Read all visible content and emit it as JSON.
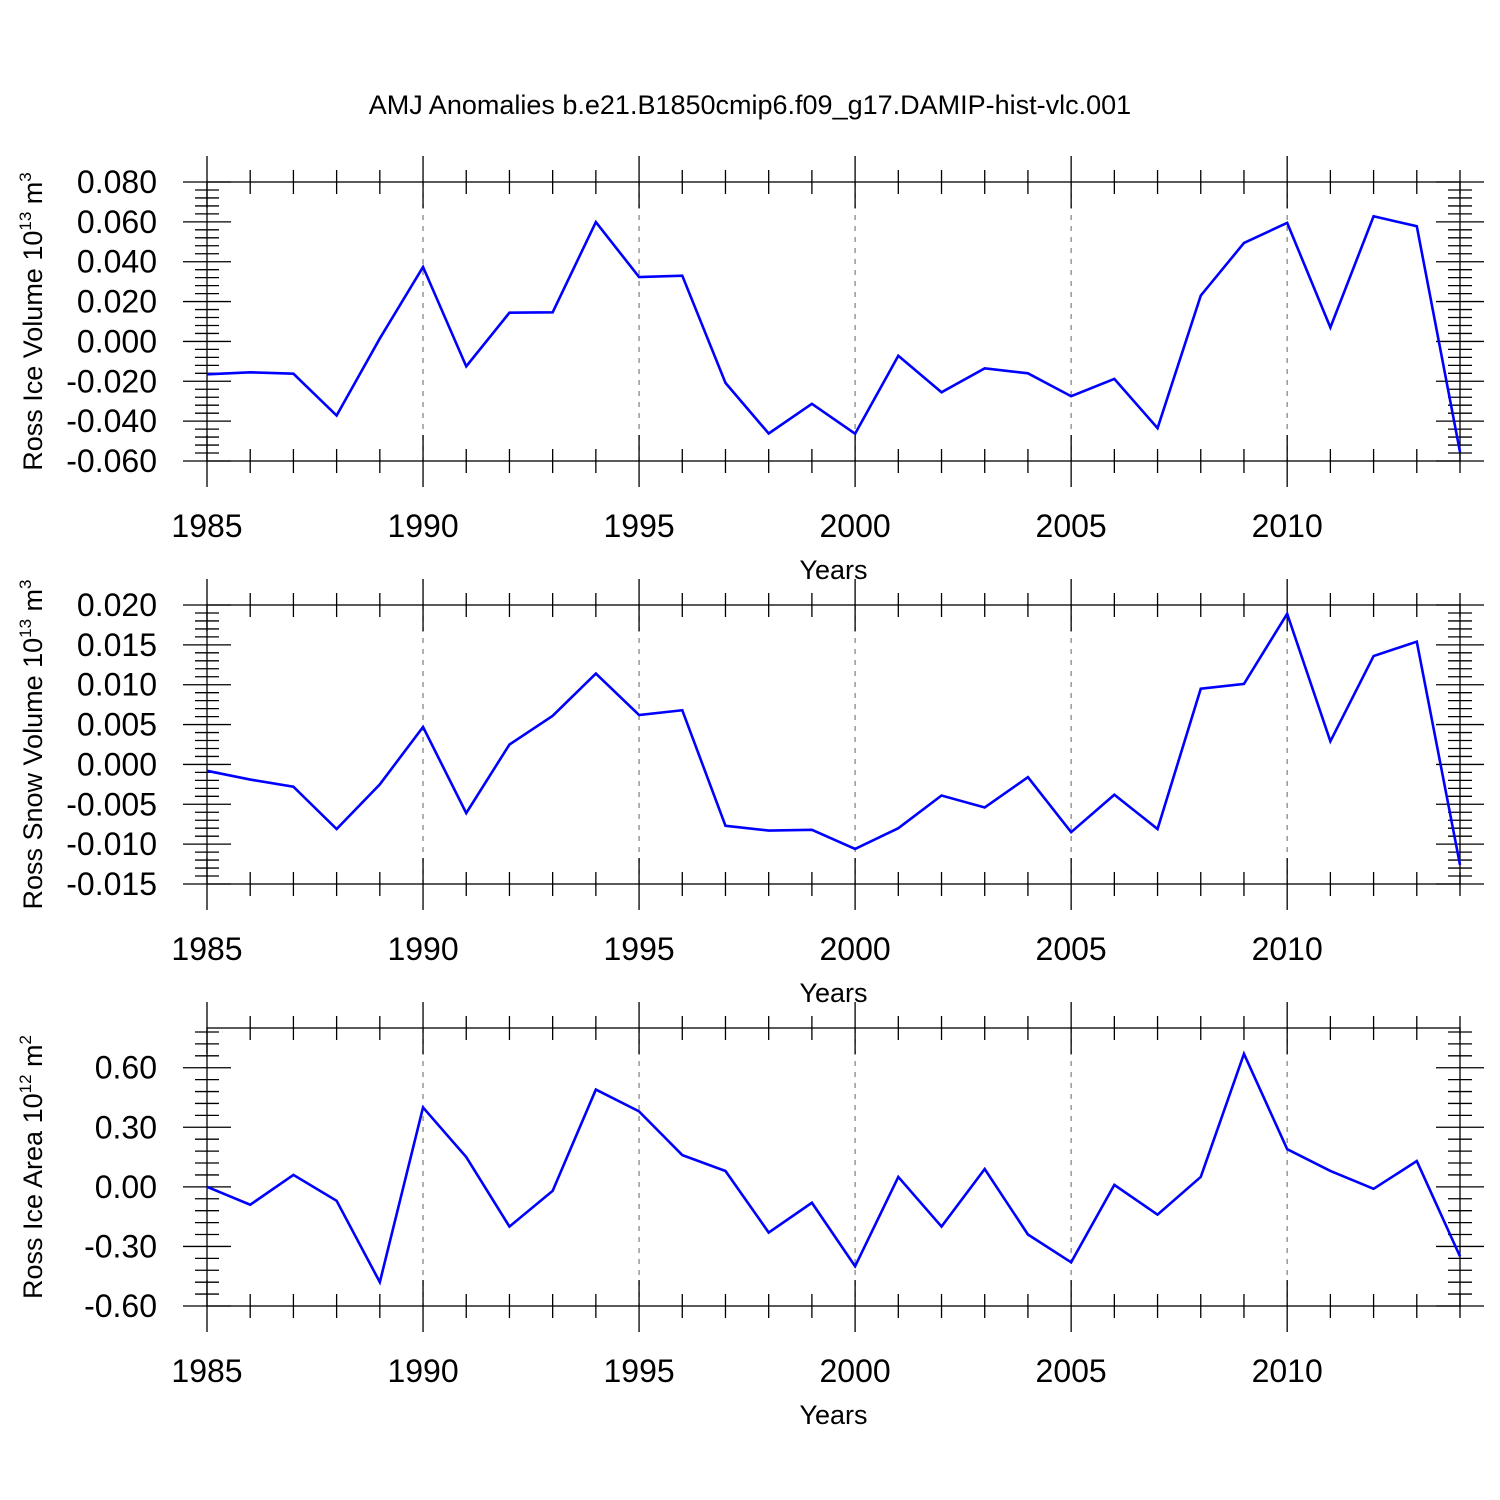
{
  "title": "AMJ Anomalies b.e21.B1850cmip6.f09_g17.DAMIP-hist-vlc.001",
  "colors": {
    "line": "#0000ff",
    "axis": "#000000",
    "grid": "#888888"
  },
  "chart_data": [
    {
      "type": "line",
      "title": "",
      "xlabel": "Years",
      "ylabel": "Ross Ice Volume 10",
      "ylabel_sup": "13",
      "ylabel_unit": " m",
      "ylabel_unit_sup": "3",
      "xlim": [
        1985,
        2014
      ],
      "ylim": [
        -0.06,
        0.08
      ],
      "xticks": [
        1985,
        1990,
        1995,
        2000,
        2005,
        2010
      ],
      "yticks": [
        "0.080",
        "0.060",
        "0.040",
        "0.020",
        "0.000",
        "-0.020",
        "-0.040",
        "-0.060"
      ],
      "ytick_values": [
        0.08,
        0.06,
        0.04,
        0.02,
        0.0,
        -0.02,
        -0.04,
        -0.06
      ],
      "grid": "vertical dashed at major x ticks",
      "x": [
        1985,
        1986,
        1987,
        1988,
        1989,
        1990,
        1991,
        1992,
        1993,
        1994,
        1995,
        1996,
        1997,
        1998,
        1999,
        2000,
        2001,
        2002,
        2003,
        2004,
        2005,
        2006,
        2007,
        2008,
        2009,
        2010,
        2011,
        2012,
        2013,
        2014
      ],
      "series": [
        {
          "values": [
            -0.0165,
            -0.0155,
            -0.0162,
            -0.0372,
            0.0015,
            0.0374,
            -0.0125,
            0.0144,
            0.0146,
            0.0599,
            0.0323,
            0.033,
            -0.0208,
            -0.0462,
            -0.0313,
            -0.0463,
            -0.0072,
            -0.0255,
            -0.0135,
            -0.016,
            -0.0275,
            -0.0188,
            -0.0435,
            0.023,
            0.0494,
            0.0595,
            0.007,
            0.0628,
            0.0578,
            -0.0555
          ]
        }
      ]
    },
    {
      "type": "line",
      "title": "",
      "xlabel": "Years",
      "ylabel": "Ross Snow Volume 10",
      "ylabel_sup": "13",
      "ylabel_unit": " m",
      "ylabel_unit_sup": "3",
      "xlim": [
        1985,
        2014
      ],
      "ylim": [
        -0.015,
        0.02
      ],
      "xticks": [
        1985,
        1990,
        1995,
        2000,
        2005,
        2010
      ],
      "yticks": [
        "0.020",
        "0.015",
        "0.010",
        "0.005",
        "0.000",
        "-0.005",
        "-0.010",
        "-0.015"
      ],
      "ytick_values": [
        0.02,
        0.015,
        0.01,
        0.005,
        0.0,
        -0.005,
        -0.01,
        -0.015
      ],
      "grid": "vertical dashed at major x ticks",
      "x": [
        1985,
        1986,
        1987,
        1988,
        1989,
        1990,
        1991,
        1992,
        1993,
        1994,
        1995,
        1996,
        1997,
        1998,
        1999,
        2000,
        2001,
        2002,
        2003,
        2004,
        2005,
        2006,
        2007,
        2008,
        2009,
        2010,
        2011,
        2012,
        2013,
        2014
      ],
      "series": [
        {
          "values": [
            -0.0008,
            -0.0019,
            -0.0028,
            -0.0081,
            -0.0025,
            0.0047,
            -0.0061,
            0.0025,
            0.0061,
            0.0114,
            0.0062,
            0.0068,
            -0.0077,
            -0.0083,
            -0.0082,
            -0.0106,
            -0.008,
            -0.0039,
            -0.0054,
            -0.0016,
            -0.0085,
            -0.0038,
            -0.0081,
            0.0095,
            0.0101,
            0.0189,
            0.0029,
            0.0136,
            0.0154,
            -0.0126
          ]
        }
      ]
    },
    {
      "type": "line",
      "title": "",
      "xlabel": "Years",
      "ylabel": "Ross Ice Area 10",
      "ylabel_sup": "12",
      "ylabel_unit": " m",
      "ylabel_unit_sup": "2",
      "xlim": [
        1985,
        2014
      ],
      "ylim": [
        -0.6,
        0.8
      ],
      "xticks": [
        1985,
        1990,
        1995,
        2000,
        2005,
        2010
      ],
      "yticks": [
        "0.60",
        "0.30",
        "0.00",
        "-0.30",
        "-0.60"
      ],
      "ytick_values": [
        0.6,
        0.3,
        0.0,
        -0.3,
        -0.6
      ],
      "grid": "vertical dashed at major x ticks",
      "x": [
        1985,
        1986,
        1987,
        1988,
        1989,
        1990,
        1991,
        1992,
        1993,
        1994,
        1995,
        1996,
        1997,
        1998,
        1999,
        2000,
        2001,
        2002,
        2003,
        2004,
        2005,
        2006,
        2007,
        2008,
        2009,
        2010,
        2011,
        2012,
        2013,
        2014
      ],
      "series": [
        {
          "values": [
            0.0,
            -0.09,
            0.06,
            -0.07,
            -0.48,
            0.4,
            0.15,
            -0.2,
            -0.02,
            0.49,
            0.38,
            0.16,
            0.08,
            -0.23,
            -0.08,
            -0.4,
            0.05,
            -0.2,
            0.09,
            -0.24,
            -0.38,
            0.01,
            -0.14,
            0.05,
            0.67,
            0.19,
            0.08,
            -0.01,
            0.13,
            -0.35
          ]
        }
      ]
    }
  ]
}
